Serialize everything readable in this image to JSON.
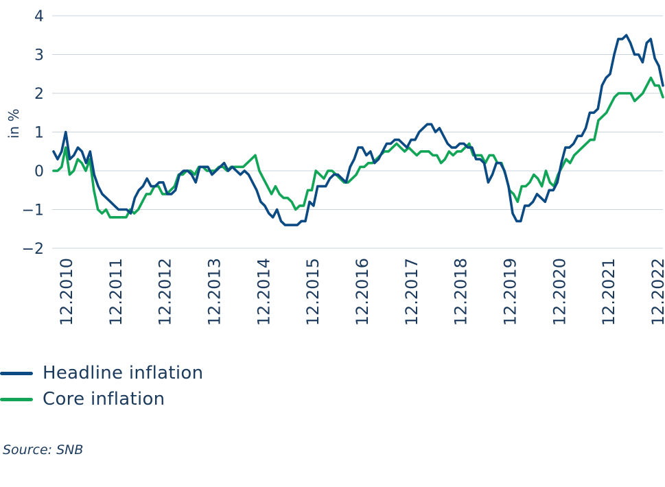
{
  "chart_data": {
    "type": "line",
    "ylabel": "in %",
    "ylim": [
      -2,
      4
    ],
    "yticks": [
      "4",
      "3",
      "2",
      "1",
      "0",
      "−1",
      "−2"
    ],
    "yticks_values": [
      4,
      3,
      2,
      1,
      0,
      -1,
      -2
    ],
    "xticks": [
      "12.2010",
      "12.2011",
      "12.2012",
      "12.2013",
      "12.2014",
      "12.2015",
      "12.2016",
      "12.2017",
      "12.2018",
      "12.2019",
      "12.2020",
      "12.2021",
      "12.2022"
    ],
    "x_start": "12.2010",
    "x_end": "12.2022",
    "grid": true,
    "legend_position": "bottom-left",
    "series": [
      {
        "name": "Headline inflation",
        "color": "#0b4a83",
        "values": [
          0.5,
          0.3,
          0.5,
          1.0,
          0.3,
          0.4,
          0.6,
          0.5,
          0.2,
          0.5,
          -0.1,
          -0.4,
          -0.6,
          -0.7,
          -0.8,
          -0.9,
          -1.0,
          -1.0,
          -1.0,
          -1.1,
          -0.7,
          -0.5,
          -0.4,
          -0.2,
          -0.4,
          -0.4,
          -0.3,
          -0.3,
          -0.6,
          -0.6,
          -0.5,
          -0.1,
          0.0,
          0.0,
          -0.1,
          -0.3,
          0.1,
          0.1,
          0.1,
          -0.1,
          0.0,
          0.1,
          0.2,
          0.0,
          0.1,
          0.0,
          -0.1,
          0.0,
          -0.1,
          -0.3,
          -0.5,
          -0.8,
          -0.9,
          -1.1,
          -1.2,
          -1.0,
          -1.3,
          -1.4,
          -1.4,
          -1.4,
          -1.4,
          -1.3,
          -1.3,
          -0.8,
          -0.9,
          -0.4,
          -0.4,
          -0.4,
          -0.2,
          -0.1,
          -0.1,
          -0.2,
          -0.3,
          0.1,
          0.3,
          0.6,
          0.6,
          0.4,
          0.5,
          0.2,
          0.3,
          0.5,
          0.7,
          0.7,
          0.8,
          0.8,
          0.7,
          0.6,
          0.8,
          0.8,
          1.0,
          1.1,
          1.2,
          1.2,
          1.0,
          1.1,
          0.9,
          0.7,
          0.6,
          0.6,
          0.7,
          0.7,
          0.6,
          0.6,
          0.3,
          0.3,
          0.2,
          -0.3,
          -0.1,
          0.2,
          0.2,
          0.0,
          -0.4,
          -1.1,
          -1.3,
          -1.3,
          -0.9,
          -0.9,
          -0.8,
          -0.6,
          -0.7,
          -0.8,
          -0.5,
          -0.5,
          -0.3,
          0.2,
          0.6,
          0.6,
          0.7,
          0.9,
          0.9,
          1.1,
          1.5,
          1.5,
          1.6,
          2.2,
          2.4,
          2.5,
          3.0,
          3.4,
          3.4,
          3.5,
          3.3,
          3.0,
          3.0,
          2.8,
          3.3,
          3.4,
          2.9,
          2.7,
          2.2
        ]
      },
      {
        "name": "Core inflation",
        "color": "#12a558",
        "values": [
          0.0,
          0.0,
          0.1,
          0.6,
          -0.1,
          0.0,
          0.3,
          0.2,
          0.0,
          0.3,
          -0.5,
          -1.0,
          -1.1,
          -1.0,
          -1.2,
          -1.2,
          -1.2,
          -1.2,
          -1.2,
          -1.0,
          -1.1,
          -1.0,
          -0.8,
          -0.6,
          -0.6,
          -0.4,
          -0.4,
          -0.6,
          -0.6,
          -0.5,
          -0.4,
          -0.1,
          -0.1,
          0.0,
          0.0,
          -0.1,
          0.1,
          0.1,
          0.0,
          0.0,
          0.0,
          0.1,
          0.1,
          0.0,
          0.1,
          0.1,
          0.1,
          0.1,
          0.2,
          0.3,
          0.4,
          0.0,
          -0.2,
          -0.4,
          -0.6,
          -0.4,
          -0.6,
          -0.7,
          -0.7,
          -0.8,
          -1.0,
          -0.9,
          -0.9,
          -0.5,
          -0.5,
          0.0,
          -0.1,
          -0.2,
          0.0,
          0.0,
          -0.1,
          -0.2,
          -0.3,
          -0.3,
          -0.2,
          -0.1,
          0.1,
          0.1,
          0.2,
          0.2,
          0.3,
          0.4,
          0.5,
          0.5,
          0.6,
          0.7,
          0.6,
          0.5,
          0.6,
          0.5,
          0.4,
          0.5,
          0.5,
          0.5,
          0.4,
          0.4,
          0.2,
          0.3,
          0.5,
          0.4,
          0.5,
          0.5,
          0.6,
          0.7,
          0.4,
          0.4,
          0.4,
          0.2,
          0.4,
          0.4,
          0.2,
          0.2,
          -0.1,
          -0.5,
          -0.6,
          -0.8,
          -0.4,
          -0.4,
          -0.3,
          -0.1,
          -0.2,
          -0.4,
          0.0,
          -0.3,
          -0.4,
          -0.1,
          0.1,
          0.3,
          0.2,
          0.4,
          0.5,
          0.6,
          0.7,
          0.8,
          0.8,
          1.3,
          1.4,
          1.5,
          1.7,
          1.9,
          2.0,
          2.0,
          2.0,
          2.0,
          1.8,
          1.9,
          2.0,
          2.2,
          2.4,
          2.2,
          2.2,
          1.9
        ]
      }
    ]
  },
  "legend": {
    "items": [
      {
        "label": "Headline inflation",
        "color": "#0b4a83"
      },
      {
        "label": "Core inflation",
        "color": "#12a558"
      }
    ]
  },
  "source": "Source: SNB"
}
